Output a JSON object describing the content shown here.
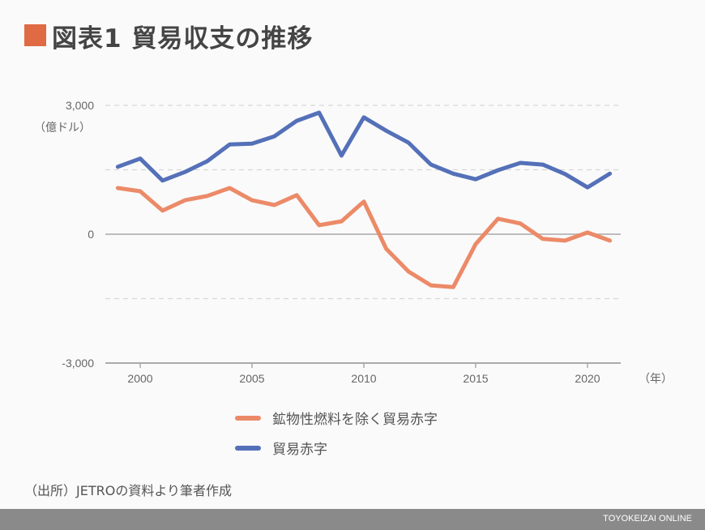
{
  "title": "図表1 貿易収支の推移",
  "source": "（出所）JETROの資料より筆者作成",
  "footer": "TOYOKEIZAI ONLINE",
  "colors": {
    "title_accent": "#e06a44",
    "orange": "#ec8a68",
    "blue": "#5470b8"
  },
  "chart_data": {
    "type": "line",
    "title": "",
    "ylabel": "（億ドル）",
    "xlabel": "（年）",
    "ylim": [
      -3000,
      3000
    ],
    "yticks": [
      -3000,
      0,
      3000
    ],
    "ytick_labels": [
      "-3,000",
      "0",
      "3,000"
    ],
    "y_gridlines": [
      -1500,
      1500,
      3000
    ],
    "xticks": [
      2000,
      2005,
      2010,
      2015,
      2020
    ],
    "x": [
      1999,
      2000,
      2001,
      2002,
      2003,
      2004,
      2005,
      2006,
      2007,
      2008,
      2009,
      2010,
      2011,
      2012,
      2013,
      2014,
      2015,
      2016,
      2017,
      2018,
      2019,
      2020,
      2021
    ],
    "legend_position": "bottom",
    "series": [
      {
        "name": "鉱物性燃料を除く貿易赤字",
        "color": "#ec8a68",
        "values": [
          1075,
          1000,
          550,
          790,
          890,
          1075,
          790,
          680,
          910,
          210,
          300,
          760,
          -340,
          -870,
          -1190,
          -1230,
          -230,
          360,
          250,
          -110,
          -150,
          40,
          -150
        ]
      },
      {
        "name": "貿易赤字",
        "color": "#5470b8",
        "values": [
          1570,
          1760,
          1250,
          1450,
          1700,
          2090,
          2110,
          2280,
          2640,
          2830,
          1830,
          2720,
          2410,
          2130,
          1620,
          1410,
          1280,
          1490,
          1660,
          1620,
          1400,
          1090,
          1410
        ]
      }
    ]
  }
}
